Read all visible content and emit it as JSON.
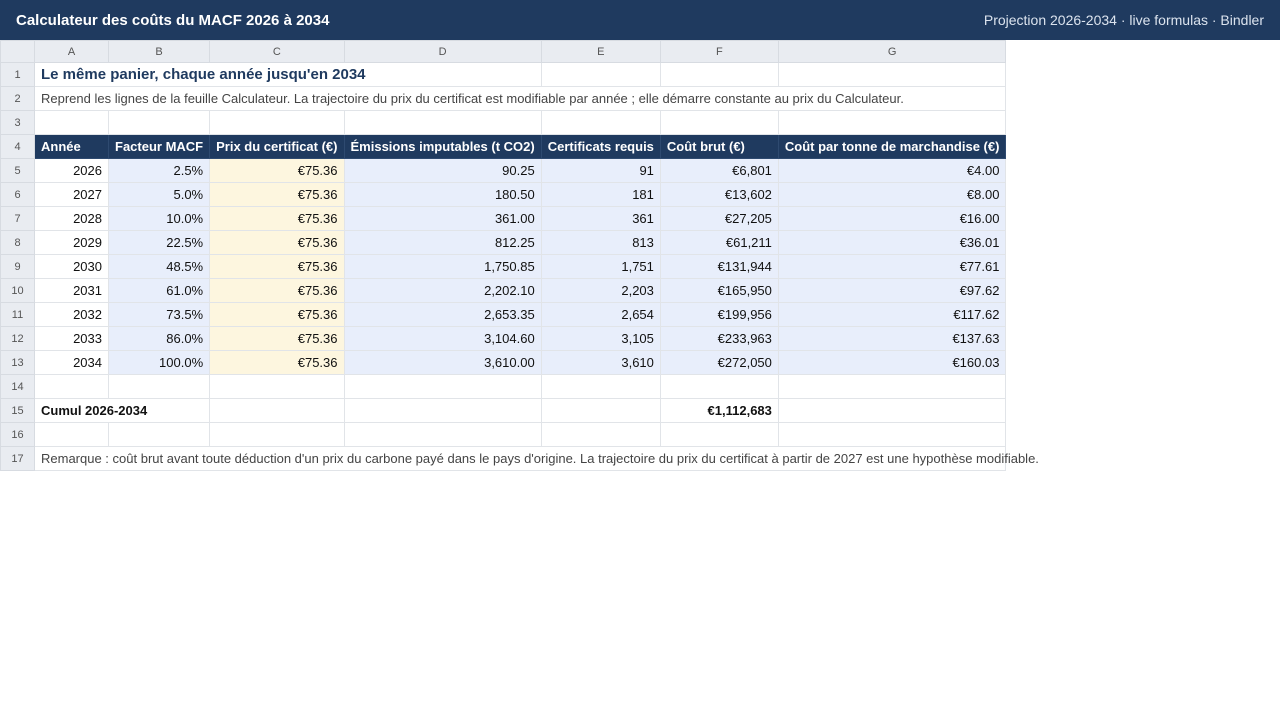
{
  "app": {
    "title": "Calculateur des coûts du MACF 2026 à 2034",
    "meta": "Projection 2026-2034 · live formulas · Bindler"
  },
  "columns": [
    "A",
    "B",
    "C",
    "D",
    "E",
    "F",
    "G"
  ],
  "sheet": {
    "title": "Le même panier, chaque année jusqu'en 2034",
    "subtitle": "Reprend les lignes de la feuille Calculateur. La trajectoire du prix du certificat est modifiable par année ; elle démarre constante au prix du Calculateur.",
    "headers": [
      "Année",
      "Facteur MACF",
      "Prix du certificat (€)",
      "Émissions imputables (t CO2)",
      "Certificats requis",
      "Coût brut (€)",
      "Coût par tonne de marchandise (€)"
    ],
    "rows": [
      [
        "2026",
        "2.5%",
        "€75.36",
        "90.25",
        "91",
        "€6,801",
        "€4.00"
      ],
      [
        "2027",
        "5.0%",
        "€75.36",
        "180.50",
        "181",
        "€13,602",
        "€8.00"
      ],
      [
        "2028",
        "10.0%",
        "€75.36",
        "361.00",
        "361",
        "€27,205",
        "€16.00"
      ],
      [
        "2029",
        "22.5%",
        "€75.36",
        "812.25",
        "813",
        "€61,211",
        "€36.01"
      ],
      [
        "2030",
        "48.5%",
        "€75.36",
        "1,750.85",
        "1,751",
        "€131,944",
        "€77.61"
      ],
      [
        "2031",
        "61.0%",
        "€75.36",
        "2,202.10",
        "2,203",
        "€165,950",
        "€97.62"
      ],
      [
        "2032",
        "73.5%",
        "€75.36",
        "2,653.35",
        "2,654",
        "€199,956",
        "€117.62"
      ],
      [
        "2033",
        "86.0%",
        "€75.36",
        "3,104.60",
        "3,105",
        "€233,963",
        "€137.63"
      ],
      [
        "2034",
        "100.0%",
        "€75.36",
        "3,610.00",
        "3,610",
        "€272,050",
        "€160.03"
      ]
    ],
    "total_label": "Cumul 2026-2034",
    "total_value": "€1,112,683",
    "remark": "Remarque : coût brut avant toute déduction d'un prix du carbone payé dans le pays d'origine. La trajectoire du prix du certificat à partir de 2027 est une hypothèse modifiable."
  },
  "colors": {
    "header_bg": "#1f3a5f",
    "calc_fill": "#e8eefb",
    "input_fill": "#fdf6df"
  }
}
